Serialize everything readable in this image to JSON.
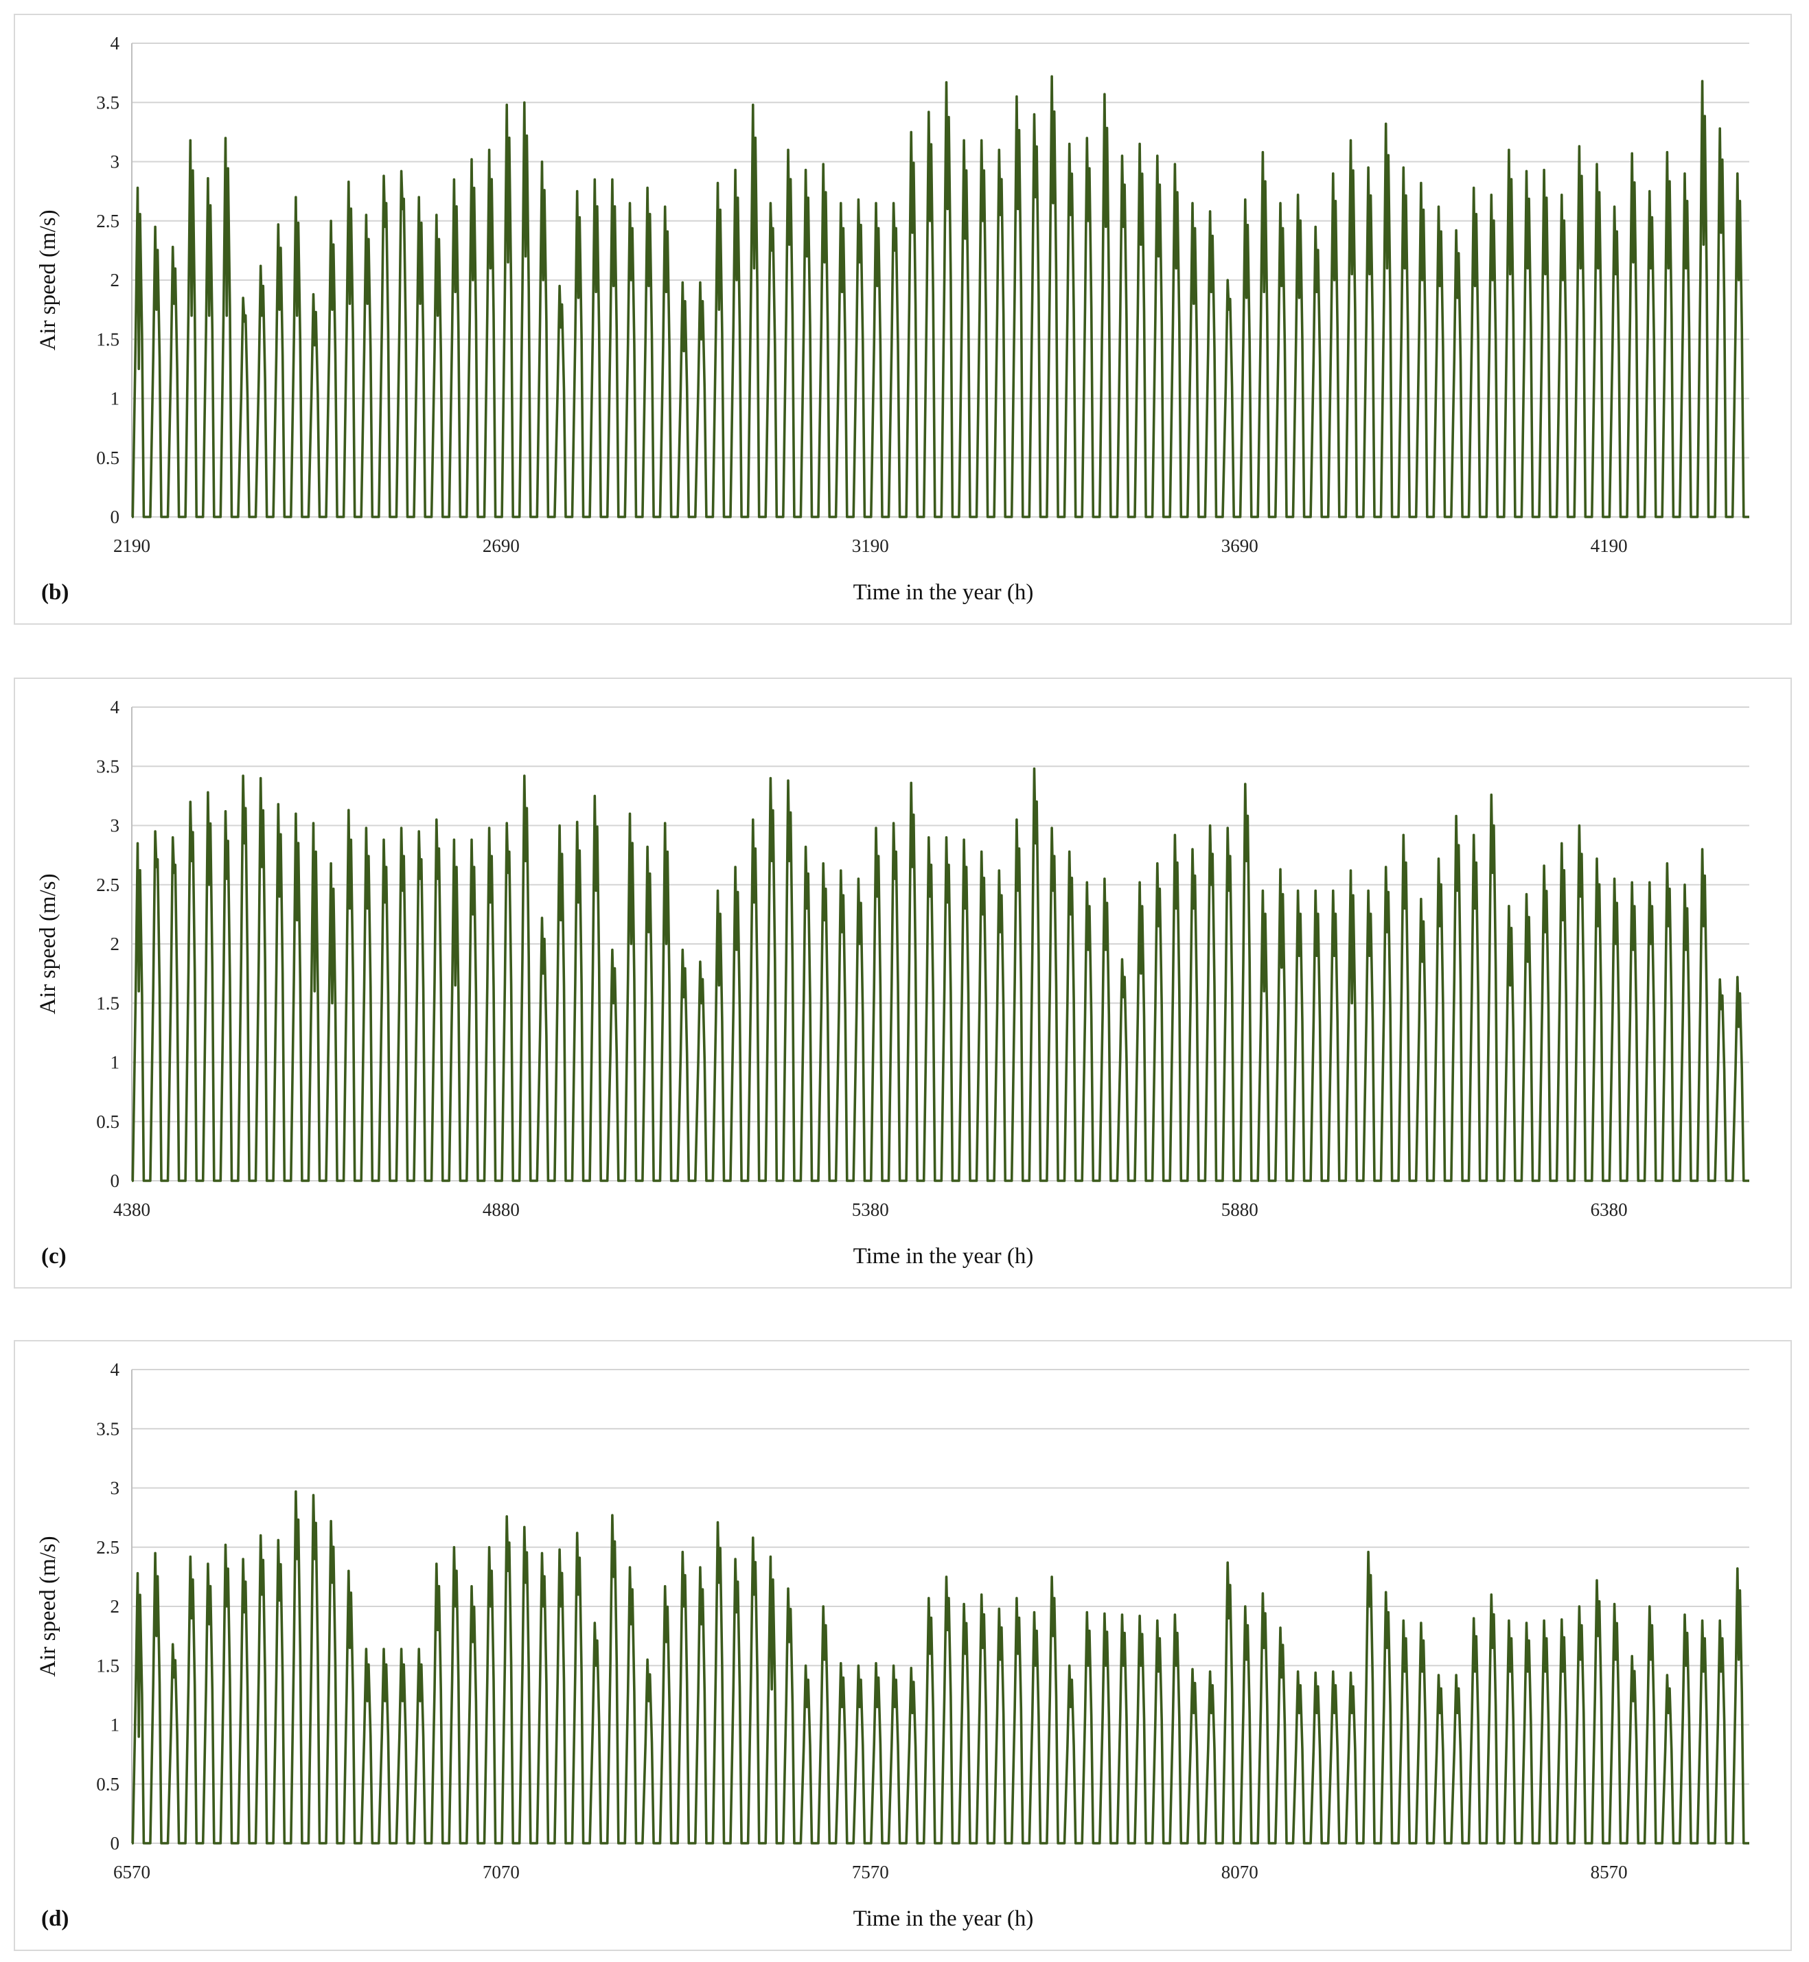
{
  "chart_data": [
    {
      "type": "line",
      "panel_label": "(b)",
      "xlabel": "Time in the year (h)",
      "ylabel": "Air speed (m/s)",
      "xlim": [
        2190,
        4380
      ],
      "ylim": [
        0,
        4
      ],
      "x_ticks": [
        "2190",
        "2690",
        "3190",
        "3690",
        "4190"
      ],
      "y_ticks": [
        "0",
        "0.5",
        "1",
        "1.5",
        "2",
        "2.5",
        "3",
        "3.5",
        "4"
      ],
      "series": [
        {
          "name": "Air speed",
          "color": "#3b5a1c",
          "daily_peaks": [
            2.78,
            2.45,
            2.28,
            3.18,
            2.86,
            3.2,
            1.85,
            2.12,
            2.47,
            2.7,
            1.88,
            2.5,
            2.83,
            2.55,
            2.88,
            2.92,
            2.7,
            2.55,
            2.85,
            3.02,
            3.1,
            3.48,
            3.5,
            3.0,
            1.95,
            2.75,
            2.85,
            2.85,
            2.65,
            2.78,
            2.62,
            1.98,
            1.98,
            2.82,
            2.93,
            3.48,
            2.65,
            3.1,
            2.93,
            2.98,
            2.65,
            2.68,
            2.65,
            2.65,
            3.25,
            3.42,
            3.67,
            3.18,
            3.18,
            3.1,
            3.55,
            3.4,
            3.72,
            3.15,
            3.2,
            3.57,
            3.05,
            3.15,
            3.05,
            2.98,
            2.65,
            2.58,
            2.0,
            2.68,
            3.08,
            2.65,
            2.72,
            2.45,
            2.9,
            3.18,
            2.95,
            3.32,
            2.95,
            2.82,
            2.62,
            2.42,
            2.78,
            2.72,
            3.1,
            2.92,
            2.93,
            2.72,
            3.13,
            2.98,
            2.62,
            3.07,
            2.75,
            3.08,
            2.9,
            3.68,
            3.28,
            2.9
          ],
          "daily_dips": [
            1.25,
            1.75,
            1.8,
            1.7,
            1.7,
            1.7,
            1.65,
            1.7,
            1.75,
            1.7,
            1.45,
            1.75,
            1.8,
            1.8,
            2.45,
            2.6,
            1.8,
            1.7,
            1.9,
            2.0,
            2.1,
            2.15,
            2.2,
            2.0,
            1.6,
            1.85,
            1.9,
            1.95,
            2.0,
            1.95,
            1.9,
            1.4,
            1.5,
            1.75,
            2.0,
            2.1,
            2.25,
            2.3,
            2.2,
            2.15,
            1.9,
            2.15,
            1.95,
            2.25,
            2.4,
            2.5,
            2.6,
            2.35,
            2.5,
            2.55,
            2.6,
            2.7,
            2.65,
            2.55,
            2.5,
            2.45,
            2.45,
            2.3,
            2.2,
            2.1,
            1.8,
            1.9,
            1.75,
            1.85,
            1.9,
            1.95,
            1.85,
            1.9,
            2.0,
            2.05,
            2.05,
            2.1,
            2.1,
            2.0,
            1.95,
            1.85,
            1.95,
            2.0,
            2.05,
            2.1,
            2.05,
            2.0,
            2.1,
            2.1,
            2.05,
            2.15,
            2.1,
            2.1,
            2.1,
            2.3,
            2.4,
            2.0
          ]
        }
      ]
    },
    {
      "type": "line",
      "panel_label": "(c)",
      "xlabel": "Time in the year (h)",
      "ylabel": "Air speed (m/s)",
      "xlim": [
        4380,
        6570
      ],
      "ylim": [
        0,
        4
      ],
      "x_ticks": [
        "4380",
        "4880",
        "5380",
        "5880",
        "6380"
      ],
      "y_ticks": [
        "0",
        "0.5",
        "1",
        "1.5",
        "2",
        "2.5",
        "3",
        "3.5",
        "4"
      ],
      "series": [
        {
          "name": "Air speed",
          "color": "#3b5a1c",
          "daily_peaks": [
            2.85,
            2.95,
            2.9,
            3.2,
            3.28,
            3.12,
            3.42,
            3.4,
            3.18,
            3.1,
            3.02,
            2.68,
            3.13,
            2.98,
            2.88,
            2.98,
            2.95,
            3.05,
            2.88,
            2.88,
            2.98,
            3.02,
            3.42,
            2.22,
            3.0,
            3.03,
            3.25,
            1.95,
            3.1,
            2.82,
            3.02,
            1.95,
            1.85,
            2.45,
            2.65,
            3.05,
            3.4,
            3.38,
            2.82,
            2.68,
            2.62,
            2.55,
            2.98,
            3.02,
            3.36,
            2.9,
            2.9,
            2.88,
            2.78,
            2.62,
            3.05,
            3.48,
            2.98,
            2.78,
            2.52,
            2.55,
            1.87,
            2.52,
            2.68,
            2.92,
            2.8,
            3.0,
            2.98,
            3.35,
            2.45,
            2.63,
            2.45,
            2.45,
            2.45,
            2.62,
            2.45,
            2.65,
            2.92,
            2.38,
            2.72,
            3.08,
            2.92,
            3.26,
            2.32,
            2.42,
            2.66,
            2.85,
            3.0,
            2.72,
            2.55,
            2.52,
            2.52,
            2.68,
            2.5,
            2.8,
            1.7,
            1.72
          ],
          "daily_dips": [
            1.6,
            2.65,
            2.6,
            2.7,
            2.5,
            2.55,
            2.85,
            2.65,
            2.4,
            2.2,
            1.6,
            1.5,
            2.3,
            2.3,
            2.35,
            2.45,
            2.55,
            2.55,
            1.65,
            2.25,
            2.35,
            2.6,
            2.7,
            1.75,
            2.2,
            2.35,
            2.45,
            1.5,
            2.0,
            2.1,
            2.0,
            1.55,
            1.5,
            1.65,
            1.95,
            2.35,
            2.7,
            2.7,
            2.3,
            2.2,
            2.1,
            2.0,
            2.4,
            2.55,
            2.65,
            2.4,
            2.35,
            2.3,
            2.25,
            2.1,
            2.45,
            2.85,
            2.45,
            2.25,
            1.95,
            1.95,
            1.55,
            1.75,
            2.15,
            2.3,
            2.3,
            2.5,
            2.45,
            2.7,
            1.6,
            1.8,
            1.9,
            1.9,
            1.9,
            1.5,
            1.9,
            2.1,
            2.3,
            1.85,
            2.15,
            2.45,
            2.3,
            2.6,
            1.65,
            1.85,
            2.1,
            2.2,
            2.4,
            2.15,
            2.0,
            1.95,
            2.0,
            2.15,
            1.95,
            2.15,
            1.45,
            1.3
          ]
        }
      ]
    },
    {
      "type": "line",
      "panel_label": "(d)",
      "xlabel": "Time in the year (h)",
      "ylabel": "Air speed (m/s)",
      "xlim": [
        6570,
        8760
      ],
      "ylim": [
        0,
        4
      ],
      "x_ticks": [
        "6570",
        "7070",
        "7570",
        "8070",
        "8570"
      ],
      "y_ticks": [
        "0",
        "0.5",
        "1",
        "1.5",
        "2",
        "2.5",
        "3",
        "3.5",
        "4"
      ],
      "series": [
        {
          "name": "Air speed",
          "color": "#3b5a1c",
          "daily_peaks": [
            2.28,
            2.45,
            1.68,
            2.42,
            2.36,
            2.52,
            2.4,
            2.6,
            2.56,
            2.97,
            2.94,
            2.72,
            2.3,
            1.64,
            1.64,
            1.64,
            1.64,
            2.36,
            2.5,
            2.17,
            2.5,
            2.76,
            2.67,
            2.45,
            2.48,
            2.62,
            1.86,
            2.77,
            2.33,
            1.55,
            2.17,
            2.46,
            2.33,
            2.71,
            2.4,
            2.58,
            2.42,
            2.15,
            1.5,
            2.0,
            1.52,
            1.5,
            1.52,
            1.5,
            1.48,
            2.07,
            2.25,
            2.02,
            2.1,
            1.98,
            2.07,
            1.95,
            2.25,
            1.5,
            1.95,
            1.94,
            1.93,
            1.92,
            1.88,
            1.93,
            1.47,
            1.45,
            2.37,
            2.0,
            2.11,
            1.82,
            1.45,
            1.44,
            1.45,
            1.44,
            2.46,
            2.12,
            1.88,
            1.86,
            1.42,
            1.42,
            1.9,
            2.1,
            1.88,
            1.86,
            1.88,
            1.89,
            2.0,
            2.22,
            2.02,
            1.58,
            2.0,
            1.42,
            1.93,
            1.88,
            1.88,
            2.32
          ],
          "daily_dips": [
            0.9,
            1.75,
            1.4,
            1.9,
            1.85,
            2.0,
            1.95,
            2.1,
            2.05,
            2.4,
            2.4,
            2.2,
            1.65,
            1.2,
            1.2,
            1.2,
            1.2,
            1.8,
            2.0,
            1.7,
            2.0,
            2.3,
            2.2,
            2.0,
            2.0,
            2.1,
            1.5,
            2.25,
            1.85,
            1.2,
            1.7,
            2.0,
            1.85,
            2.2,
            1.95,
            2.1,
            1.3,
            1.7,
            1.15,
            1.55,
            1.15,
            1.15,
            1.15,
            1.15,
            1.1,
            1.6,
            1.8,
            1.6,
            1.65,
            1.55,
            1.6,
            1.5,
            1.75,
            1.15,
            1.5,
            1.5,
            1.5,
            1.5,
            1.45,
            1.5,
            1.1,
            1.1,
            1.9,
            1.55,
            1.65,
            1.4,
            1.1,
            1.1,
            1.1,
            1.1,
            2.0,
            1.65,
            1.45,
            1.45,
            1.1,
            1.1,
            1.45,
            1.65,
            1.45,
            1.45,
            1.45,
            1.45,
            1.55,
            1.75,
            1.55,
            1.2,
            1.55,
            1.1,
            1.5,
            1.45,
            1.45,
            1.55
          ]
        }
      ]
    }
  ]
}
